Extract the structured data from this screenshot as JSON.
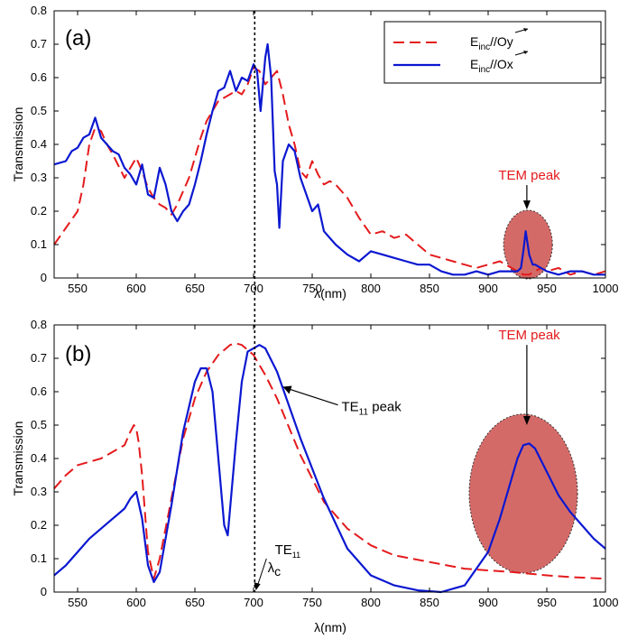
{
  "colors": {
    "red": "#e41a1c",
    "blue": "#0b18d0",
    "ellipse_fill": "#d46a68",
    "black": "#000000"
  },
  "chart_data": [
    {
      "type": "line",
      "panel_label": "(a)",
      "xlabel": "λ(nm)",
      "ylabel": "Transmission",
      "xlim": [
        530,
        1000
      ],
      "ylim": [
        0,
        0.8
      ],
      "x_ticks": [
        550,
        600,
        650,
        700,
        750,
        800,
        850,
        900,
        950,
        1000
      ],
      "y_ticks": [
        0,
        0.1,
        0.2,
        0.3,
        0.4,
        0.5,
        0.6,
        0.7,
        0.8
      ],
      "legend": {
        "placement": "top-right",
        "entries": [
          {
            "main": "E",
            "sub": "inc",
            "tail": "//Oy",
            "style": "dashed",
            "color": "#e41a1c"
          },
          {
            "main": "E",
            "sub": "inc",
            "tail": "//Ox",
            "style": "solid",
            "color": "#0b18d0"
          }
        ]
      },
      "annotations": [
        {
          "text": "TEM peak",
          "x": 935,
          "y": 0.235,
          "color": "#e41a1c"
        }
      ],
      "vertical_line_x": 701,
      "series": [
        {
          "name": "E_inc//Oy",
          "style": "dashed",
          "color": "#e41a1c",
          "x": [
            530,
            540,
            550,
            555,
            560,
            565,
            570,
            575,
            580,
            590,
            600,
            605,
            610,
            615,
            620,
            625,
            630,
            635,
            640,
            645,
            650,
            655,
            660,
            665,
            670,
            675,
            680,
            685,
            690,
            695,
            700,
            705,
            710,
            715,
            720,
            725,
            730,
            735,
            740,
            745,
            750,
            755,
            760,
            765,
            770,
            780,
            790,
            800,
            810,
            820,
            830,
            840,
            850,
            860,
            870,
            880,
            890,
            900,
            910,
            920,
            925,
            930,
            935,
            940,
            945,
            950,
            960,
            970,
            980,
            990,
            1000
          ],
          "y": [
            0.1,
            0.15,
            0.2,
            0.28,
            0.4,
            0.45,
            0.44,
            0.4,
            0.37,
            0.3,
            0.36,
            0.32,
            0.27,
            0.24,
            0.22,
            0.21,
            0.19,
            0.22,
            0.26,
            0.3,
            0.36,
            0.42,
            0.47,
            0.5,
            0.53,
            0.54,
            0.55,
            0.56,
            0.55,
            0.58,
            0.63,
            0.62,
            0.58,
            0.6,
            0.62,
            0.55,
            0.46,
            0.4,
            0.32,
            0.3,
            0.35,
            0.31,
            0.28,
            0.29,
            0.28,
            0.24,
            0.18,
            0.13,
            0.14,
            0.12,
            0.13,
            0.1,
            0.07,
            0.06,
            0.05,
            0.04,
            0.03,
            0.04,
            0.05,
            0.03,
            0.02,
            0.01,
            0.01,
            0.02,
            0.03,
            0.02,
            0.03,
            0.01,
            0.02,
            0.01,
            0.02
          ]
        },
        {
          "name": "E_inc//Ox",
          "style": "solid",
          "color": "#0b18d0",
          "x": [
            530,
            540,
            545,
            550,
            555,
            560,
            565,
            570,
            575,
            580,
            585,
            590,
            595,
            600,
            605,
            610,
            615,
            620,
            625,
            630,
            635,
            640,
            645,
            650,
            655,
            660,
            665,
            670,
            675,
            680,
            685,
            690,
            695,
            700,
            703,
            706,
            710,
            712,
            715,
            718,
            720,
            722,
            725,
            730,
            735,
            740,
            745,
            750,
            755,
            760,
            765,
            770,
            780,
            790,
            800,
            810,
            820,
            830,
            840,
            850,
            860,
            870,
            880,
            890,
            900,
            910,
            920,
            925,
            928,
            930,
            932,
            935,
            938,
            940,
            945,
            950,
            960,
            970,
            980,
            990,
            1000
          ],
          "y": [
            0.34,
            0.35,
            0.38,
            0.39,
            0.42,
            0.43,
            0.48,
            0.42,
            0.4,
            0.38,
            0.37,
            0.33,
            0.31,
            0.28,
            0.34,
            0.25,
            0.24,
            0.33,
            0.28,
            0.2,
            0.17,
            0.2,
            0.22,
            0.28,
            0.35,
            0.43,
            0.5,
            0.56,
            0.57,
            0.62,
            0.56,
            0.6,
            0.59,
            0.64,
            0.62,
            0.5,
            0.66,
            0.7,
            0.6,
            0.32,
            0.28,
            0.15,
            0.35,
            0.4,
            0.38,
            0.3,
            0.25,
            0.2,
            0.22,
            0.14,
            0.12,
            0.1,
            0.07,
            0.05,
            0.08,
            0.07,
            0.06,
            0.05,
            0.04,
            0.04,
            0.02,
            0.01,
            0.01,
            0.02,
            0.01,
            0.02,
            0.02,
            0.02,
            0.03,
            0.08,
            0.14,
            0.07,
            0.04,
            0.04,
            0.03,
            0.02,
            0.01,
            0.02,
            0.02,
            0.01,
            0.01
          ]
        }
      ]
    },
    {
      "type": "line",
      "panel_label": "(b)",
      "xlabel": "λ(nm)",
      "ylabel": "Transmission",
      "xlim": [
        530,
        1000
      ],
      "ylim": [
        0,
        0.8
      ],
      "x_ticks": [
        550,
        600,
        650,
        700,
        750,
        800,
        850,
        900,
        950,
        1000
      ],
      "y_ticks": [
        0,
        0.1,
        0.2,
        0.3,
        0.4,
        0.5,
        0.6,
        0.7,
        0.8
      ],
      "annotations": [
        {
          "text": "TEM peak",
          "x": 935,
          "y": 0.74,
          "color": "#e41a1c"
        },
        {
          "main": "TE",
          "sub": "11",
          "tail": " peak",
          "x": 775,
          "y": 0.555,
          "color": "#000000"
        },
        {
          "main": "λ",
          "sub": "c",
          "sup": "TE",
          "sup_sub": "11",
          "x": 712,
          "y": 0.07,
          "color": "#000000"
        }
      ],
      "vertical_line_x": 701,
      "series": [
        {
          "name": "dashed",
          "style": "dashed",
          "color": "#e41a1c",
          "x": [
            530,
            540,
            550,
            560,
            570,
            580,
            590,
            595,
            598,
            600,
            602,
            605,
            610,
            615,
            620,
            630,
            640,
            650,
            660,
            670,
            680,
            685,
            690,
            700,
            710,
            720,
            740,
            760,
            780,
            800,
            820,
            850,
            880,
            900,
            920,
            950,
            970,
            1000
          ],
          "y": [
            0.31,
            0.35,
            0.38,
            0.39,
            0.4,
            0.42,
            0.44,
            0.48,
            0.5,
            0.49,
            0.45,
            0.35,
            0.12,
            0.04,
            0.1,
            0.28,
            0.46,
            0.58,
            0.66,
            0.71,
            0.74,
            0.745,
            0.74,
            0.71,
            0.65,
            0.58,
            0.41,
            0.27,
            0.19,
            0.14,
            0.11,
            0.09,
            0.07,
            0.065,
            0.06,
            0.05,
            0.045,
            0.04
          ]
        },
        {
          "name": "solid",
          "style": "solid",
          "color": "#0b18d0",
          "x": [
            530,
            540,
            550,
            560,
            570,
            580,
            590,
            595,
            600,
            605,
            610,
            615,
            620,
            630,
            640,
            650,
            655,
            660,
            665,
            670,
            675,
            678,
            680,
            685,
            690,
            695,
            700,
            705,
            710,
            720,
            740,
            760,
            780,
            800,
            820,
            840,
            860,
            880,
            900,
            910,
            920,
            925,
            930,
            935,
            940,
            950,
            960,
            970,
            980,
            990,
            1000
          ],
          "y": [
            0.05,
            0.08,
            0.12,
            0.16,
            0.19,
            0.22,
            0.25,
            0.28,
            0.3,
            0.22,
            0.08,
            0.03,
            0.06,
            0.26,
            0.48,
            0.63,
            0.67,
            0.67,
            0.6,
            0.4,
            0.2,
            0.17,
            0.25,
            0.45,
            0.63,
            0.72,
            0.73,
            0.74,
            0.73,
            0.66,
            0.46,
            0.28,
            0.13,
            0.05,
            0.02,
            0.005,
            0.0,
            0.02,
            0.12,
            0.22,
            0.34,
            0.4,
            0.44,
            0.445,
            0.43,
            0.36,
            0.29,
            0.24,
            0.2,
            0.16,
            0.13
          ]
        }
      ]
    }
  ]
}
